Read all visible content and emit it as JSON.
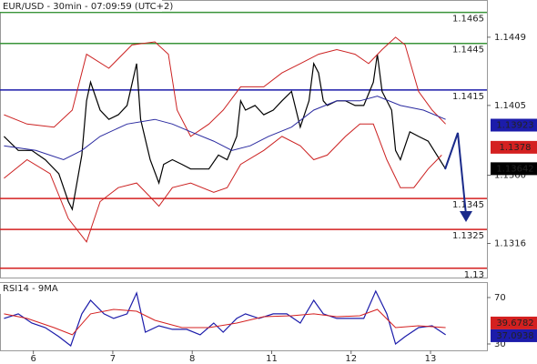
{
  "chart_data": [
    {
      "type": "line",
      "title": "EUR/USD - 30min - 07:09:59 (UTC+2)",
      "xlim": [
        -0.42,
        5.71
      ],
      "ylim": [
        1.1294,
        1.1473
      ],
      "yticks": [
        1.1449,
        1.1405,
        {
          "value": 1.136,
          "label": "1.1360"
        },
        1.1316
      ],
      "series": [
        {
          "color": "#000000",
          "x": [
            -0.37,
            -0.19,
            -0.02,
            0.15,
            0.32,
            0.44,
            0.49,
            0.61,
            0.67,
            0.72,
            0.84,
            0.95,
            1.07,
            1.18,
            1.3,
            1.35,
            1.47,
            1.58,
            1.64,
            1.75,
            1.87,
            1.98,
            2.1,
            2.21,
            2.33,
            2.44,
            2.56,
            2.61,
            2.67,
            2.79,
            2.9,
            3.02,
            3.13,
            3.25,
            3.36,
            3.47,
            3.53,
            3.59,
            3.65,
            3.7,
            3.82,
            3.93,
            4.05,
            4.16,
            4.28,
            4.33,
            4.39,
            4.51,
            4.56,
            4.62,
            4.74,
            4.85,
            4.97,
            5.08,
            5.19
          ],
          "values": [
            1.1385,
            1.1376,
            1.1376,
            1.137,
            1.1361,
            1.1343,
            1.1338,
            1.1373,
            1.1408,
            1.142,
            1.1402,
            1.1396,
            1.1399,
            1.1405,
            1.1432,
            1.1396,
            1.137,
            1.1355,
            1.1367,
            1.137,
            1.1367,
            1.1364,
            1.1364,
            1.1364,
            1.1373,
            1.137,
            1.1385,
            1.1408,
            1.1402,
            1.1405,
            1.1399,
            1.1402,
            1.1408,
            1.1414,
            1.1391,
            1.1408,
            1.1432,
            1.1426,
            1.1408,
            1.1405,
            1.1408,
            1.1408,
            1.1405,
            1.1405,
            1.142,
            1.1438,
            1.1414,
            1.1402,
            1.1376,
            1.137,
            1.1388,
            1.1385,
            1.1382,
            1.1373,
            1.1364
          ]
        },
        {
          "color": "#cc2222",
          "x": [
            -0.37,
            -0.08,
            0.26,
            0.49,
            0.67,
            0.95,
            1.24,
            1.53,
            1.7,
            1.81,
            1.98,
            2.21,
            2.39,
            2.61,
            2.9,
            3.13,
            3.36,
            3.59,
            3.82,
            4.05,
            4.22,
            4.39,
            4.56,
            4.68,
            4.85,
            5.02,
            5.19
          ],
          "values": [
            1.1399,
            1.1393,
            1.1391,
            1.1402,
            1.1438,
            1.1429,
            1.1444,
            1.1446,
            1.1438,
            1.1402,
            1.1385,
            1.1393,
            1.1402,
            1.1417,
            1.1417,
            1.1426,
            1.1432,
            1.1438,
            1.1441,
            1.1438,
            1.1432,
            1.1441,
            1.1449,
            1.1444,
            1.1414,
            1.1402,
            1.1393
          ]
        },
        {
          "color": "#cc2222",
          "x": [
            -0.37,
            -0.08,
            0.21,
            0.44,
            0.67,
            0.84,
            1.07,
            1.3,
            1.47,
            1.58,
            1.75,
            1.98,
            2.27,
            2.44,
            2.61,
            2.9,
            3.13,
            3.36,
            3.53,
            3.7,
            3.93,
            4.11,
            4.28,
            4.45,
            4.62,
            4.79,
            4.97,
            5.14
          ],
          "values": [
            1.1358,
            1.137,
            1.1361,
            1.1332,
            1.1317,
            1.1343,
            1.1352,
            1.1355,
            1.1346,
            1.134,
            1.1352,
            1.1355,
            1.1349,
            1.1352,
            1.1367,
            1.1376,
            1.1385,
            1.1379,
            1.137,
            1.1373,
            1.1385,
            1.1393,
            1.1393,
            1.137,
            1.1352,
            1.1352,
            1.1364,
            1.1373
          ]
        },
        {
          "color": "#2a2aa0",
          "x": [
            -0.37,
            0.03,
            0.38,
            0.61,
            0.84,
            1.18,
            1.53,
            1.75,
            1.98,
            2.27,
            2.5,
            2.73,
            2.96,
            3.25,
            3.53,
            3.82,
            4.11,
            4.33,
            4.62,
            4.91,
            5.19
          ],
          "values": [
            1.1379,
            1.1376,
            1.137,
            1.1376,
            1.1385,
            1.1393,
            1.1396,
            1.1393,
            1.1388,
            1.1382,
            1.1376,
            1.1379,
            1.1385,
            1.1391,
            1.1402,
            1.1408,
            1.1408,
            1.1411,
            1.1405,
            1.1402,
            1.1396
          ]
        }
      ],
      "levels": [
        {
          "value": 1.1465,
          "color": "#3a943a"
        },
        {
          "value": 1.1445,
          "color": "#3a943a"
        },
        {
          "value": 1.1415,
          "color": "#1c1caa"
        },
        {
          "value": 1.1345,
          "color": "#d42020"
        },
        {
          "value": 1.1325,
          "color": "#d42020"
        },
        {
          "value": 1.13,
          "color": "#d42020"
        }
      ],
      "markers": [
        {
          "value": 1.13923,
          "color": "#1c1caa"
        },
        {
          "value": 1.1378,
          "color": "#d42020"
        },
        {
          "value": 1.13642,
          "color": "#000000"
        }
      ]
    },
    {
      "type": "line",
      "title": "RSI14 - 9MA",
      "xlim": [
        -0.42,
        5.71
      ],
      "ylim": [
        24.5,
        83.3
      ],
      "xticks": [
        {
          "value": 0,
          "label": "6"
        },
        {
          "value": 1,
          "label": "7"
        },
        {
          "value": 2,
          "label": "8"
        },
        {
          "value": 3,
          "label": "11"
        },
        {
          "value": 4,
          "label": "12"
        },
        {
          "value": 5,
          "label": "13"
        }
      ],
      "yticks": [
        70,
        30
      ],
      "series": [
        {
          "color": "#1c1caa",
          "x": [
            -0.37,
            -0.19,
            -0.02,
            0.15,
            0.32,
            0.47,
            0.61,
            0.72,
            0.89,
            1.01,
            1.18,
            1.3,
            1.41,
            1.58,
            1.75,
            1.93,
            2.1,
            2.27,
            2.39,
            2.56,
            2.67,
            2.84,
            3.02,
            3.19,
            3.36,
            3.53,
            3.65,
            3.82,
            3.99,
            4.16,
            4.31,
            4.45,
            4.56,
            4.68,
            4.85,
            5.02,
            5.19
          ],
          "values": [
            52.0,
            55.9,
            48.0,
            44.1,
            36.3,
            28.4,
            55.9,
            67.6,
            55.9,
            52.0,
            55.9,
            73.9,
            40.2,
            45.7,
            42.6,
            42.6,
            37.9,
            48.0,
            40.2,
            52.0,
            55.9,
            52.0,
            55.9,
            55.9,
            48.0,
            67.6,
            55.9,
            52.0,
            52.0,
            52.0,
            75.5,
            55.9,
            30.0,
            36.3,
            44.1,
            45.7,
            37.9
          ]
        },
        {
          "color": "#d42020",
          "x": [
            -0.37,
            -0.08,
            0.26,
            0.49,
            0.72,
            1.01,
            1.3,
            1.53,
            1.87,
            2.21,
            2.56,
            2.9,
            3.25,
            3.53,
            3.82,
            4.11,
            4.33,
            4.56,
            4.85,
            5.19
          ],
          "values": [
            55.9,
            52.0,
            44.1,
            37.9,
            55.9,
            59.8,
            58.2,
            50.4,
            44.1,
            44.1,
            48.0,
            53.5,
            54.3,
            55.9,
            53.5,
            54.3,
            59.8,
            44.1,
            45.7,
            44.1
          ]
        }
      ],
      "markers": [
        {
          "value": 39.6782,
          "color": "#d42020"
        },
        {
          "value": 37.0938,
          "color": "#1c1caa"
        }
      ]
    }
  ]
}
